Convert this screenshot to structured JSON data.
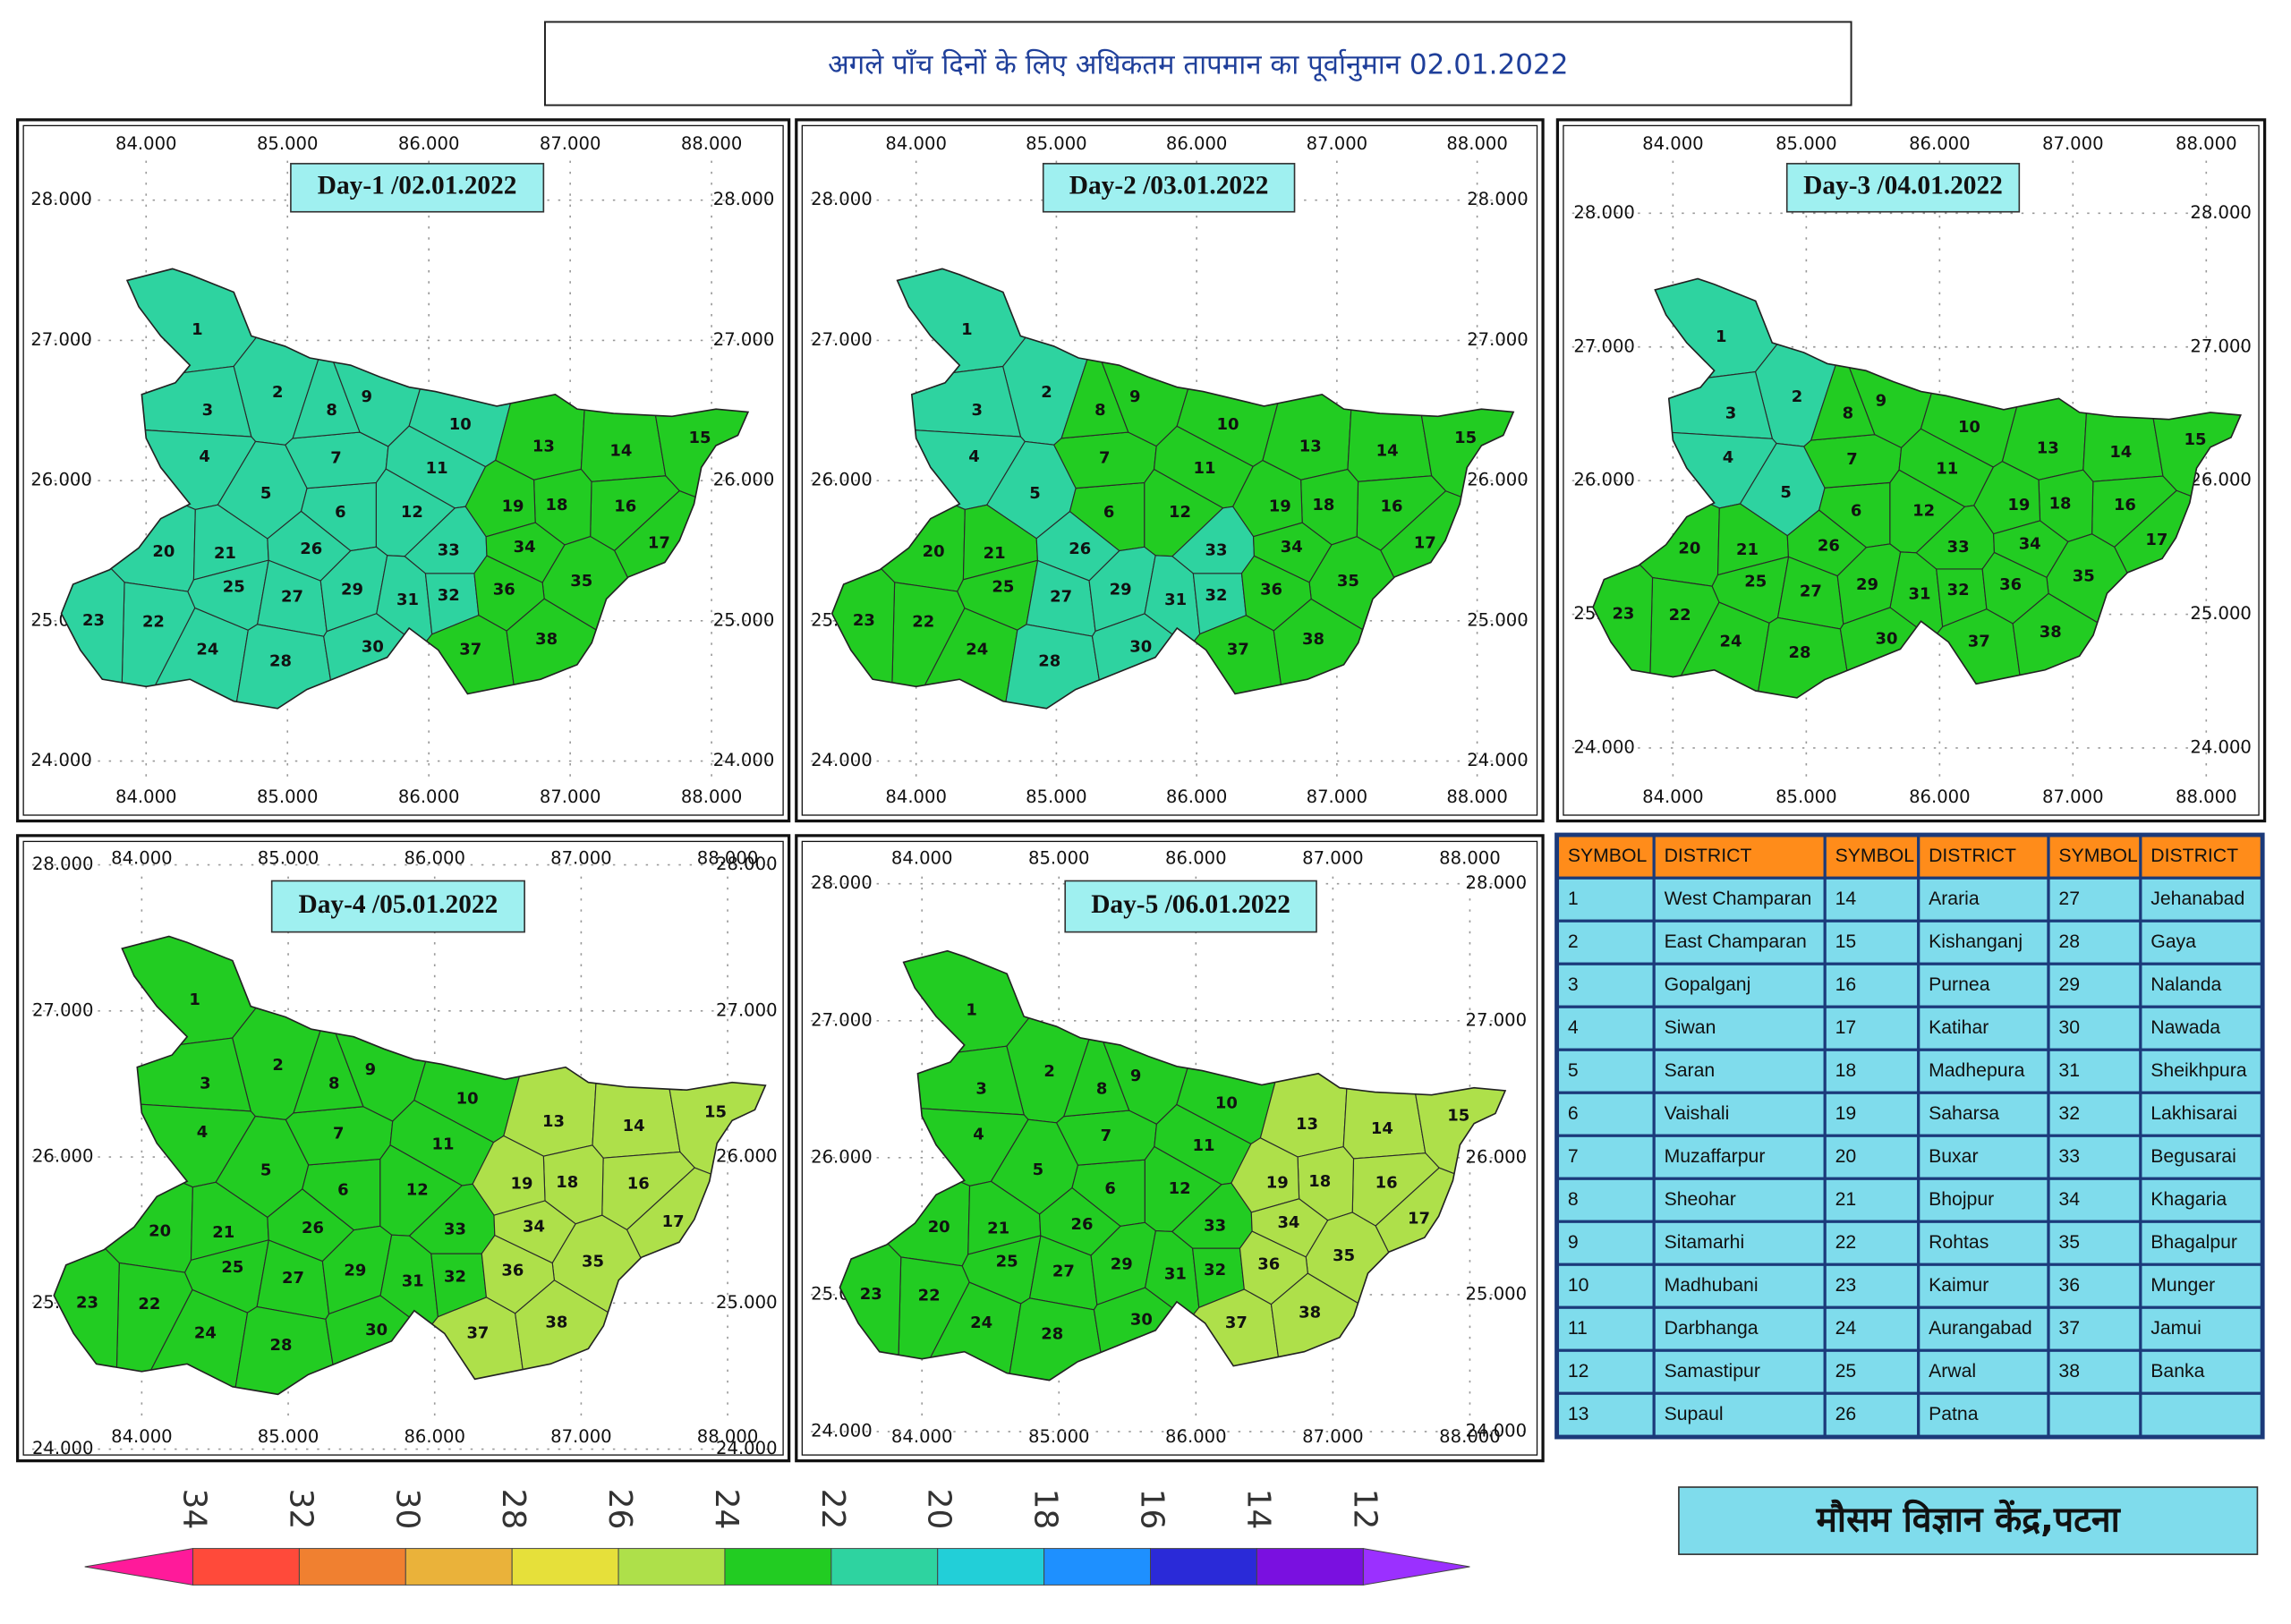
{
  "title": "अगले पाँच दिनों के लिए अधिकतम तापमान का पूर्वानुमान  02.01.2022",
  "footer": "मौसम विज्ञान केंद्र,पटना",
  "lon_ticks": [
    {
      "value": 84,
      "label": "84.000"
    },
    {
      "value": 85,
      "label": "85.000"
    },
    {
      "value": 86,
      "label": "86.000"
    },
    {
      "value": 87,
      "label": "87.000"
    },
    {
      "value": 88,
      "label": "88.000"
    }
  ],
  "lat_ticks": [
    {
      "value": 24,
      "label": "24.000"
    },
    {
      "value": 25,
      "label": "25.000"
    },
    {
      "value": 26,
      "label": "26.000"
    },
    {
      "value": 27,
      "label": "27.000"
    },
    {
      "value": 28,
      "label": "28.000"
    }
  ],
  "maps": [
    {
      "label": "Day-1 /02.01.2022",
      "district_temps": [
        21,
        21,
        21,
        21,
        21,
        21,
        21,
        21,
        21,
        21,
        21,
        21,
        23,
        23,
        23,
        23,
        23,
        23,
        23,
        21,
        21,
        21,
        21,
        21,
        21,
        21,
        21,
        21,
        21,
        21,
        21,
        21,
        21,
        23,
        23,
        23,
        23,
        23
      ]
    },
    {
      "label": "Day-2 /03.01.2022",
      "district_temps": [
        21,
        21,
        21,
        21,
        21,
        23,
        23,
        23,
        23,
        23,
        23,
        23,
        23,
        23,
        23,
        23,
        23,
        23,
        23,
        23,
        23,
        23,
        23,
        23,
        23,
        21,
        21,
        21,
        21,
        21,
        21,
        21,
        21,
        23,
        23,
        23,
        23,
        23
      ]
    },
    {
      "label": "Day-3 /04.01.2022",
      "district_temps": [
        21,
        21,
        21,
        21,
        21,
        23,
        23,
        23,
        23,
        23,
        23,
        23,
        23,
        23,
        23,
        23,
        23,
        23,
        23,
        23,
        23,
        23,
        23,
        23,
        23,
        23,
        23,
        23,
        23,
        23,
        23,
        23,
        23,
        23,
        23,
        23,
        23,
        23
      ]
    },
    {
      "label": "Day-4 /05.01.2022",
      "district_temps": [
        23,
        23,
        23,
        23,
        23,
        23,
        23,
        23,
        23,
        23,
        23,
        23,
        25,
        25,
        25,
        25,
        25,
        25,
        25,
        23,
        23,
        23,
        23,
        23,
        23,
        23,
        23,
        23,
        23,
        23,
        23,
        23,
        23,
        25,
        25,
        25,
        25,
        25
      ]
    },
    {
      "label": "Day-5 /06.01.2022",
      "district_temps": [
        23,
        23,
        23,
        23,
        23,
        23,
        23,
        23,
        23,
        23,
        23,
        23,
        25,
        25,
        25,
        25,
        25,
        25,
        25,
        23,
        23,
        23,
        23,
        23,
        23,
        23,
        23,
        23,
        23,
        23,
        23,
        23,
        23,
        25,
        25,
        25,
        25,
        25
      ]
    }
  ],
  "table_headers": [
    "SYMBOL",
    "DISTRICT"
  ],
  "districts": [
    {
      "symbol": 1,
      "name": "West Champaran"
    },
    {
      "symbol": 2,
      "name": "East Champaran"
    },
    {
      "symbol": 3,
      "name": "Gopalganj"
    },
    {
      "symbol": 4,
      "name": "Siwan"
    },
    {
      "symbol": 5,
      "name": "Saran"
    },
    {
      "symbol": 6,
      "name": "Vaishali"
    },
    {
      "symbol": 7,
      "name": "Muzaffarpur"
    },
    {
      "symbol": 8,
      "name": "Sheohar"
    },
    {
      "symbol": 9,
      "name": "Sitamarhi"
    },
    {
      "symbol": 10,
      "name": "Madhubani"
    },
    {
      "symbol": 11,
      "name": "Darbhanga"
    },
    {
      "symbol": 12,
      "name": "Samastipur"
    },
    {
      "symbol": 13,
      "name": "Supaul"
    },
    {
      "symbol": 14,
      "name": "Araria"
    },
    {
      "symbol": 15,
      "name": "Kishanganj"
    },
    {
      "symbol": 16,
      "name": "Purnea"
    },
    {
      "symbol": 17,
      "name": "Katihar"
    },
    {
      "symbol": 18,
      "name": "Madhepura"
    },
    {
      "symbol": 19,
      "name": "Saharsa"
    },
    {
      "symbol": 20,
      "name": "Buxar"
    },
    {
      "symbol": 21,
      "name": "Bhojpur"
    },
    {
      "symbol": 22,
      "name": "Rohtas"
    },
    {
      "symbol": 23,
      "name": "Kaimur"
    },
    {
      "symbol": 24,
      "name": "Aurangabad"
    },
    {
      "symbol": 25,
      "name": "Arwal"
    },
    {
      "symbol": 26,
      "name": "Patna"
    },
    {
      "symbol": 27,
      "name": "Jehanabad"
    },
    {
      "symbol": 28,
      "name": "Gaya"
    },
    {
      "symbol": 29,
      "name": "Nalanda"
    },
    {
      "symbol": 30,
      "name": "Nawada"
    },
    {
      "symbol": 31,
      "name": "Sheikhpura"
    },
    {
      "symbol": 32,
      "name": "Lakhisarai"
    },
    {
      "symbol": 33,
      "name": "Begusarai"
    },
    {
      "symbol": 34,
      "name": "Khagaria"
    },
    {
      "symbol": 35,
      "name": "Bhagalpur"
    },
    {
      "symbol": 36,
      "name": "Munger"
    },
    {
      "symbol": 37,
      "name": "Jamui"
    },
    {
      "symbol": 38,
      "name": "Banka"
    }
  ],
  "legend": {
    "ticks": [
      34,
      32,
      30,
      28,
      26,
      24,
      22,
      20,
      18,
      16,
      14,
      12
    ],
    "colors": [
      "#ff1a9a",
      "#ff4a3a",
      "#f08030",
      "#eab23a",
      "#e6e03a",
      "#aee04a",
      "#22cc22",
      "#2ed3a0",
      "#22cfd8",
      "#1e90ff",
      "#2a2ad8",
      "#7a10e0",
      "#9b30ff"
    ]
  }
}
